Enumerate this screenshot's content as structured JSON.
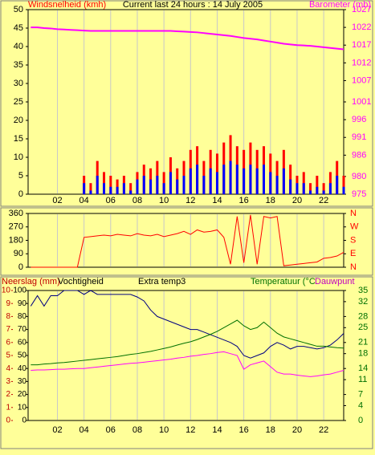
{
  "chart_data": [
    {
      "type": "bar",
      "title": "Current last 24 hours : 14 July 2005",
      "ylabel": "Windsnelheid (kmh)",
      "y2label": "Barometer (mb)",
      "x": [
        0,
        0.5,
        1,
        1.5,
        2,
        2.5,
        3,
        3.5,
        4,
        4.5,
        5,
        5.5,
        6,
        6.5,
        7,
        7.5,
        8,
        8.5,
        9,
        9.5,
        10,
        10.5,
        11,
        11.5,
        12,
        12.5,
        13,
        13.5,
        14,
        14.5,
        15,
        15.5,
        16,
        16.5,
        17,
        17.5,
        18,
        18.5,
        19,
        19.5,
        20,
        20.5,
        21,
        21.5,
        22,
        22.5,
        23,
        23.5
      ],
      "xlim": [
        -0.2,
        23.5
      ],
      "xticks": [
        {
          "value": 2,
          "label": "02"
        },
        {
          "value": 4,
          "label": "04"
        },
        {
          "value": 6,
          "label": "06"
        },
        {
          "value": 8,
          "label": "08"
        },
        {
          "value": 10,
          "label": "10"
        },
        {
          "value": 12,
          "label": "12"
        },
        {
          "value": 14,
          "label": "14"
        },
        {
          "value": 16,
          "label": "16"
        },
        {
          "value": 18,
          "label": "18"
        },
        {
          "value": 20,
          "label": "20"
        },
        {
          "value": 22,
          "label": "22"
        }
      ],
      "ylim": [
        0,
        50
      ],
      "yticks": [
        0,
        5,
        10,
        15,
        20,
        25,
        30,
        35,
        40,
        45,
        50
      ],
      "y2lim": [
        975,
        1027
      ],
      "y2ticks": [
        975,
        980,
        986,
        991,
        996,
        1001,
        1007,
        1012,
        1017,
        1022,
        1027
      ],
      "grid": true,
      "series": [
        {
          "type": "bar",
          "color": "#ff0000",
          "values": [
            0,
            0,
            0,
            0,
            0,
            0,
            0,
            0,
            5,
            3,
            9,
            6,
            5,
            4,
            5,
            3,
            6,
            8,
            7,
            9,
            6,
            10,
            7,
            9,
            12,
            13,
            9,
            12,
            11,
            14,
            16,
            13,
            12,
            14,
            12,
            13,
            11,
            9,
            12,
            8,
            5,
            6,
            3,
            5,
            3,
            6,
            9,
            5
          ]
        },
        {
          "type": "bar",
          "color": "#0000ff",
          "values": [
            0,
            0,
            0,
            0,
            0,
            0,
            0,
            0,
            3,
            1,
            5,
            3,
            2,
            2,
            3,
            1,
            4,
            5,
            4,
            5,
            3,
            6,
            4,
            5,
            7,
            8,
            5,
            7,
            6,
            8,
            9,
            8,
            7,
            8,
            7,
            8,
            6,
            5,
            7,
            4,
            3,
            3,
            1,
            2,
            1,
            3,
            5,
            2
          ]
        },
        {
          "type": "line",
          "axis": "y2",
          "color": "#ff00ff",
          "values": [
            1022,
            1022,
            1021.8,
            1021.7,
            1021.5,
            1021.4,
            1021.3,
            1021.2,
            1021.1,
            1021,
            1021,
            1021,
            1021,
            1021,
            1021,
            1021,
            1021,
            1021,
            1021,
            1021,
            1021,
            1021,
            1020.9,
            1020.8,
            1020.7,
            1020.6,
            1020.4,
            1020.2,
            1020,
            1019.8,
            1019.6,
            1019.3,
            1019,
            1018.8,
            1018.6,
            1018.3,
            1018,
            1017.7,
            1017.4,
            1017.2,
            1017,
            1016.9,
            1016.8,
            1016.6,
            1016.4,
            1016.2,
            1016,
            1015.8
          ]
        }
      ]
    },
    {
      "type": "line",
      "x": [
        0,
        0.5,
        1,
        1.5,
        2,
        2.5,
        3,
        3.5,
        4,
        4.5,
        5,
        5.5,
        6,
        6.5,
        7,
        7.5,
        8,
        8.5,
        9,
        9.5,
        10,
        10.5,
        11,
        11.5,
        12,
        12.5,
        13,
        13.5,
        14,
        14.5,
        15,
        15.5,
        16,
        16.5,
        17,
        17.5,
        18,
        18.5,
        19,
        19.5,
        20,
        20.5,
        21,
        21.5,
        22,
        22.5,
        23,
        23.5
      ],
      "xlim": [
        -0.2,
        23.5
      ],
      "xticks": [
        2,
        4,
        6,
        8,
        10,
        12,
        14,
        16,
        18,
        20,
        22
      ],
      "ylim": [
        0,
        360
      ],
      "yticks": [
        0,
        90,
        180,
        270,
        360
      ],
      "y2lim": [
        0,
        360
      ],
      "y2ticks": [
        {
          "value": 0,
          "label": "N"
        },
        {
          "value": 90,
          "label": "E"
        },
        {
          "value": 180,
          "label": "S"
        },
        {
          "value": 270,
          "label": "W"
        },
        {
          "value": 360,
          "label": "N"
        }
      ],
      "grid": true,
      "series": [
        {
          "type": "line",
          "color": "#ff0000",
          "values": [
            0,
            0,
            0,
            0,
            0,
            0,
            0,
            0,
            200,
            205,
            210,
            215,
            210,
            220,
            215,
            210,
            225,
            215,
            210,
            220,
            205,
            215,
            225,
            240,
            220,
            250,
            235,
            240,
            250,
            200,
            20,
            340,
            30,
            350,
            20,
            340,
            330,
            340,
            10,
            15,
            20,
            25,
            30,
            35,
            60,
            65,
            75,
            100
          ]
        }
      ]
    },
    {
      "type": "line",
      "annotation": "Extra temp3",
      "y3label": "Neerslag (mm)",
      "x": [
        0,
        0.5,
        1,
        1.5,
        2,
        2.5,
        3,
        3.5,
        4,
        4.5,
        5,
        5.5,
        6,
        6.5,
        7,
        7.5,
        8,
        8.5,
        9,
        9.5,
        10,
        10.5,
        11,
        11.5,
        12,
        12.5,
        13,
        13.5,
        14,
        14.5,
        15,
        15.5,
        16,
        16.5,
        17,
        17.5,
        18,
        18.5,
        19,
        19.5,
        20,
        20.5,
        21,
        21.5,
        22,
        22.5,
        23,
        23.5
      ],
      "xlim": [
        -0.2,
        23.5
      ],
      "xticks": [
        {
          "value": 2,
          "label": "02"
        },
        {
          "value": 4,
          "label": "04"
        },
        {
          "value": 6,
          "label": "06"
        },
        {
          "value": 8,
          "label": "08"
        },
        {
          "value": 10,
          "label": "10"
        },
        {
          "value": 12,
          "label": "12"
        },
        {
          "value": 14,
          "label": "14"
        },
        {
          "value": 16,
          "label": "16"
        },
        {
          "value": 18,
          "label": "18"
        },
        {
          "value": 20,
          "label": "20"
        },
        {
          "value": 22,
          "label": "22"
        }
      ],
      "ylim": [
        0,
        100
      ],
      "yticks": [
        0,
        10,
        20,
        30,
        40,
        50,
        60,
        70,
        80,
        90,
        100
      ],
      "y3lim": [
        0,
        10
      ],
      "y3ticks": [
        0,
        1,
        2,
        3,
        4,
        5,
        6,
        7,
        8,
        9,
        10
      ],
      "y2lim": [
        0,
        35
      ],
      "y2ticks": [
        0,
        4,
        7,
        11,
        14,
        18,
        21,
        25,
        28,
        32,
        35
      ],
      "grid": true,
      "series": [
        {
          "name": "Vochtigheid",
          "type": "line",
          "color": "#000080",
          "values": [
            88,
            96,
            88,
            96,
            96,
            100,
            100,
            100,
            97,
            100,
            97,
            97,
            97,
            97,
            97,
            97,
            95,
            92,
            85,
            80,
            78,
            76,
            74,
            72,
            70,
            70,
            68,
            66,
            64,
            62,
            60,
            57,
            50,
            48,
            50,
            52,
            57,
            60,
            58,
            55,
            57,
            57,
            56,
            55,
            56,
            58,
            62,
            67
          ]
        },
        {
          "name": "Temperatuur (°C",
          "type": "line",
          "axis": "y2",
          "color": "#007000",
          "values": [
            15,
            15,
            15.2,
            15.3,
            15.5,
            15.6,
            15.8,
            16,
            16.2,
            16.4,
            16.6,
            16.8,
            17,
            17.2,
            17.5,
            17.8,
            18,
            18.3,
            18.6,
            19,
            19.4,
            19.8,
            20.3,
            20.8,
            21.2,
            21.8,
            22.5,
            23.2,
            24,
            25,
            26,
            27,
            25.5,
            24.5,
            25,
            26.5,
            25,
            23.5,
            22.5,
            22,
            21.5,
            21,
            20.5,
            20,
            20,
            19.8,
            19.6,
            19.5
          ]
        },
        {
          "name": "Dauwpunt",
          "type": "line",
          "axis": "y2",
          "color": "#ff00ff",
          "values": [
            13.5,
            13.6,
            13.6,
            13.7,
            13.8,
            13.8,
            13.9,
            14,
            14,
            14.2,
            14.4,
            14.6,
            14.8,
            15,
            15.2,
            15.4,
            15.5,
            15.7,
            15.9,
            16.1,
            16.3,
            16.5,
            16.8,
            17,
            17.3,
            17.5,
            17.8,
            18,
            18.3,
            18.5,
            18,
            17.5,
            13.8,
            15,
            15.5,
            16,
            14.5,
            13,
            12.5,
            12.5,
            12.2,
            12,
            11.8,
            12,
            12.3,
            12.5,
            13,
            13.5
          ]
        }
      ]
    }
  ]
}
